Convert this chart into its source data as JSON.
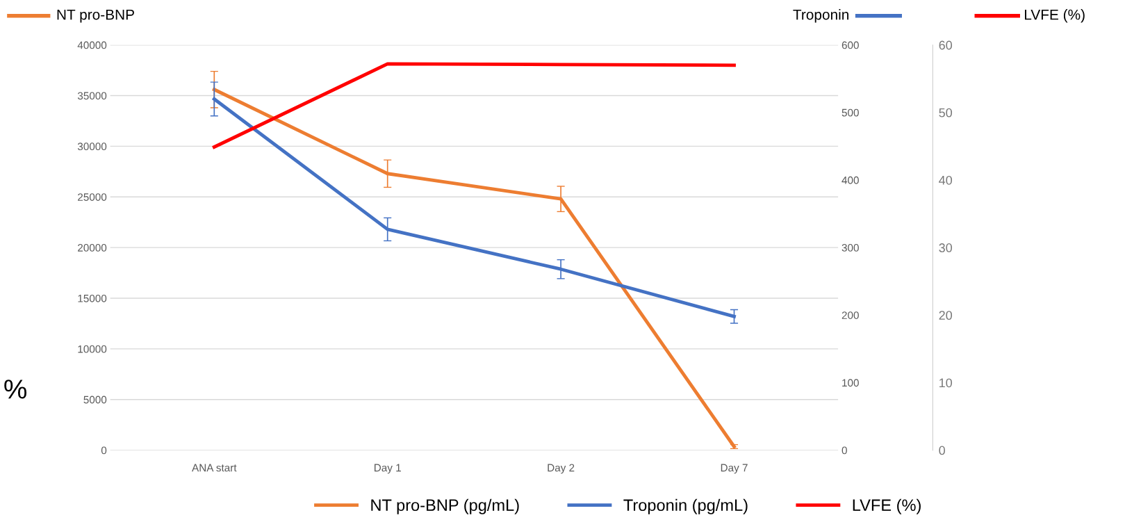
{
  "chart_data": {
    "type": "line",
    "categories": [
      "ANA start",
      "Day 1",
      "Day 2",
      "Day 7"
    ],
    "series": [
      {
        "name": "NT pro-BNP (pg/mL)",
        "color": "#ed7d31",
        "values": [
          35600,
          27300,
          24800,
          350
        ],
        "errors": [
          1800,
          1350,
          1250,
          200
        ]
      },
      {
        "name": "Troponin (pg/mL)",
        "color": "#4472c4",
        "values": [
          520,
          327,
          268,
          198
        ],
        "errors": [
          25,
          17,
          14,
          10
        ],
        "axis": "y2"
      },
      {
        "name": "LVFE (%)",
        "color": "#ff0000",
        "values": [
          44.9,
          57.2,
          57.1,
          57.0
        ],
        "axis": "y3"
      }
    ],
    "ylim": [
      0,
      40000
    ],
    "yticks": [
      0,
      5000,
      10000,
      15000,
      20000,
      25000,
      30000,
      35000,
      40000
    ],
    "y2lim": [
      0,
      600
    ],
    "y2ticks": [
      0,
      100,
      200,
      300,
      400,
      500,
      600
    ],
    "y3lim": [
      0,
      60
    ],
    "y3ticks": [
      0,
      10,
      20,
      30,
      40,
      50,
      60
    ],
    "annotations": [
      "NT pro-BNP",
      "Troponin",
      "LVFE (%)",
      "%"
    ],
    "grid": "y",
    "legend": "bottom",
    "marker": "none",
    "line_style": "solid"
  }
}
